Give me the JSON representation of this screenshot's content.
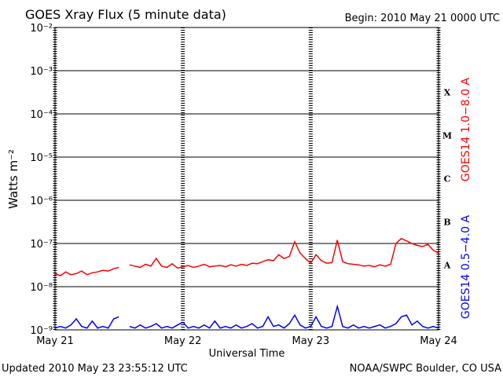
{
  "chart_data": {
    "type": "line",
    "title": "GOES Xray Flux (5 minute data)",
    "subtitle": "Begin:  2010 May 21 0000 UTC",
    "x_label": "Universal Time",
    "y_label": "Watts m⁻²",
    "footer_left": "Updated 2010 May 23 23:55:12 UTC",
    "footer_right": "NOAA/SWPC Boulder, CO USA",
    "log_y": true,
    "grid": true,
    "xlim": [
      0,
      72
    ],
    "xticks": [
      {
        "value": 0,
        "label": "May 21"
      },
      {
        "value": 24,
        "label": "May 22"
      },
      {
        "value": 48,
        "label": "May 23"
      },
      {
        "value": 72,
        "label": "May 24"
      }
    ],
    "ylim": [
      1e-09,
      0.01
    ],
    "yticks": [
      {
        "value": 1e-09,
        "label": "10⁻⁹"
      },
      {
        "value": 1e-08,
        "label": "10⁻⁸"
      },
      {
        "value": 1e-07,
        "label": "10⁻⁷"
      },
      {
        "value": 1e-06,
        "label": "10⁻⁶"
      },
      {
        "value": 1e-05,
        "label": "10⁻⁵"
      },
      {
        "value": 0.0001,
        "label": "10⁻⁴"
      },
      {
        "value": 0.001,
        "label": "10⁻³"
      },
      {
        "value": 0.01,
        "label": "10⁻²"
      }
    ],
    "class_labels": [
      {
        "value": 0.0001,
        "label": "X"
      },
      {
        "value": 1e-05,
        "label": "M"
      },
      {
        "value": 1e-06,
        "label": "C"
      },
      {
        "value": 1e-07,
        "label": "B"
      },
      {
        "value": 1e-08,
        "label": "A"
      }
    ],
    "x": [
      0,
      1,
      2,
      3,
      4,
      5,
      6,
      7,
      8,
      9,
      10,
      11,
      12,
      13,
      14,
      15,
      16,
      17,
      18,
      19,
      20,
      21,
      22,
      23,
      24,
      25,
      26,
      27,
      28,
      29,
      30,
      31,
      32,
      33,
      34,
      35,
      36,
      37,
      38,
      39,
      40,
      41,
      42,
      43,
      44,
      45,
      46,
      47,
      48,
      49,
      50,
      51,
      52,
      53,
      54,
      55,
      56,
      57,
      58,
      59,
      60,
      61,
      62,
      63,
      64,
      65,
      66,
      67,
      68,
      69,
      70,
      71,
      72
    ],
    "series": [
      {
        "name": "GOES14 1.0−8.0 A",
        "color": "#ff0000",
        "values": [
          2e-08,
          1.8e-08,
          2.2e-08,
          1.9e-08,
          2e-08,
          2.3e-08,
          1.9e-08,
          2.1e-08,
          2.2e-08,
          2.4e-08,
          2.3e-08,
          2.6e-08,
          2.8e-08,
          null,
          3.2e-08,
          3e-08,
          2.8e-08,
          3.3e-08,
          3e-08,
          4.5e-08,
          3e-08,
          2.8e-08,
          3.4e-08,
          2.7e-08,
          2.9e-08,
          3.1e-08,
          2.8e-08,
          3e-08,
          3.3e-08,
          2.9e-08,
          3e-08,
          3.1e-08,
          2.9e-08,
          3.2e-08,
          3e-08,
          3.3e-08,
          3.1e-08,
          3.5e-08,
          3.4e-08,
          3.8e-08,
          4.2e-08,
          4e-08,
          5.5e-08,
          4.5e-08,
          5e-08,
          1.1e-07,
          6e-08,
          4.5e-08,
          3.5e-08,
          5.5e-08,
          4e-08,
          3.5e-08,
          3.6e-08,
          1.2e-07,
          3.8e-08,
          3.4e-08,
          3.3e-08,
          3.2e-08,
          3e-08,
          3.1e-08,
          2.9e-08,
          3.2e-08,
          3e-08,
          3.3e-08,
          1e-07,
          1.3e-07,
          1.15e-07,
          1e-07,
          9e-08,
          8.5e-08,
          9.5e-08,
          7e-08,
          6e-08
        ]
      },
      {
        "name": "GOES14 0.5−4.0 A",
        "color": "#0000ff",
        "values": [
          1.1e-09,
          1.2e-09,
          1.1e-09,
          1.3e-09,
          1.8e-09,
          1.2e-09,
          1.1e-09,
          1.6e-09,
          1.1e-09,
          1.2e-09,
          1.1e-09,
          1.8e-09,
          2e-09,
          null,
          1.2e-09,
          1.1e-09,
          1.3e-09,
          1.1e-09,
          1.2e-09,
          1.4e-09,
          1.1e-09,
          1.2e-09,
          1.1e-09,
          1.3e-09,
          1.5e-09,
          1.1e-09,
          1.2e-09,
          1.1e-09,
          1.3e-09,
          1.1e-09,
          1.6e-09,
          1.1e-09,
          1.2e-09,
          1.1e-09,
          1.3e-09,
          1.1e-09,
          1.2e-09,
          1.4e-09,
          1.1e-09,
          1.2e-09,
          2e-09,
          1.2e-09,
          1.3e-09,
          1.1e-09,
          1.4e-09,
          2.2e-09,
          1.3e-09,
          1.1e-09,
          1.2e-09,
          2e-09,
          1.2e-09,
          1.1e-09,
          1.2e-09,
          3.5e-09,
          1.2e-09,
          1.1e-09,
          1.3e-09,
          1.1e-09,
          1.2e-09,
          1.1e-09,
          1.2e-09,
          1.3e-09,
          1.1e-09,
          1.2e-09,
          1.4e-09,
          2e-09,
          2.2e-09,
          1.3e-09,
          1.6e-09,
          1.2e-09,
          1.1e-09,
          1.2e-09,
          1.1e-09
        ]
      }
    ]
  }
}
